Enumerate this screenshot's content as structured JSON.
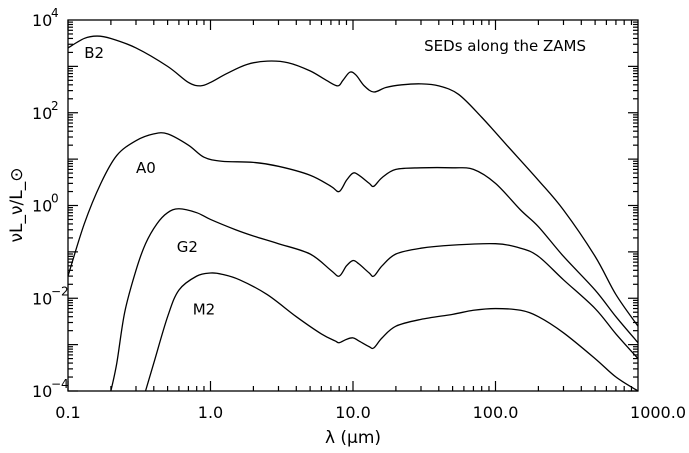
{
  "chart_data": {
    "type": "line",
    "title": "",
    "annotation": "SEDs along the ZAMS",
    "xlabel": "λ (μm)",
    "ylabel": "νL_ν/L_⊙",
    "xscale": "log",
    "yscale": "log",
    "xlim": [
      0.1,
      1000.0
    ],
    "ylim": [
      0.0001,
      10000
    ],
    "grid": false,
    "x_tick_labels": [
      "0.1",
      "1.0",
      "10.0",
      "100.0",
      "1000.0"
    ],
    "x_tick_values": [
      0.1,
      1.0,
      10.0,
      100.0,
      1000.0
    ],
    "y_tick_values": [
      0.0001,
      0.01,
      1,
      100,
      10000
    ],
    "y_tick_labels": [
      {
        "base": "10",
        "exp": "−4"
      },
      {
        "base": "10",
        "exp": "−2"
      },
      {
        "base": "10",
        "exp": "0"
      },
      {
        "base": "10",
        "exp": "2"
      },
      {
        "base": "10",
        "exp": "4"
      }
    ],
    "series": [
      {
        "name": "B2",
        "label_at": [
          0.13,
          1500
        ],
        "points": [
          [
            0.1,
            2500
          ],
          [
            0.13,
            4000
          ],
          [
            0.16,
            4500
          ],
          [
            0.2,
            4000
          ],
          [
            0.3,
            2500
          ],
          [
            0.5,
            1000
          ],
          [
            0.7,
            450
          ],
          [
            0.85,
            380
          ],
          [
            1.0,
            450
          ],
          [
            1.3,
            700
          ],
          [
            1.8,
            1100
          ],
          [
            2.5,
            1300
          ],
          [
            3.5,
            1200
          ],
          [
            5.0,
            800
          ],
          [
            6.5,
            500
          ],
          [
            7.8,
            380
          ],
          [
            8.5,
            500
          ],
          [
            9.5,
            750
          ],
          [
            10.5,
            650
          ],
          [
            12.0,
            380
          ],
          [
            14.0,
            280
          ],
          [
            17.0,
            350
          ],
          [
            22.0,
            400
          ],
          [
            30.0,
            420
          ],
          [
            40.0,
            380
          ],
          [
            55.0,
            250
          ],
          [
            80.0,
            80
          ],
          [
            120.0,
            20
          ],
          [
            200.0,
            3.5
          ],
          [
            300.0,
            0.8
          ],
          [
            500.0,
            0.08
          ],
          [
            700.0,
            0.012
          ],
          [
            1000.0,
            0.0025
          ]
        ]
      },
      {
        "name": "A0",
        "label_at": [
          0.3,
          5
        ],
        "points": [
          [
            0.1,
            0.03
          ],
          [
            0.13,
            0.4
          ],
          [
            0.17,
            3
          ],
          [
            0.22,
            12
          ],
          [
            0.3,
            25
          ],
          [
            0.4,
            35
          ],
          [
            0.5,
            35
          ],
          [
            0.7,
            20
          ],
          [
            0.9,
            11
          ],
          [
            1.2,
            9
          ],
          [
            2.0,
            8.5
          ],
          [
            3.0,
            7
          ],
          [
            5.0,
            4.5
          ],
          [
            7.0,
            2.6
          ],
          [
            8.0,
            2
          ],
          [
            9.0,
            3.5
          ],
          [
            10.0,
            5
          ],
          [
            11.0,
            4.5
          ],
          [
            13.0,
            3
          ],
          [
            14.0,
            2.6
          ],
          [
            16.0,
            4
          ],
          [
            20.0,
            6
          ],
          [
            30.0,
            6.5
          ],
          [
            50.0,
            6.5
          ],
          [
            70.0,
            6
          ],
          [
            100.0,
            3
          ],
          [
            150.0,
            0.8
          ],
          [
            200.0,
            0.35
          ],
          [
            300.0,
            0.08
          ],
          [
            500.0,
            0.015
          ],
          [
            700.0,
            0.004
          ],
          [
            1000.0,
            0.0011
          ]
        ]
      },
      {
        "name": "G2",
        "label_at": [
          0.58,
          0.1
        ],
        "points": [
          [
            0.2,
            0.0001
          ],
          [
            0.22,
            0.0004
          ],
          [
            0.25,
            0.005
          ],
          [
            0.3,
            0.04
          ],
          [
            0.35,
            0.15
          ],
          [
            0.42,
            0.4
          ],
          [
            0.5,
            0.7
          ],
          [
            0.6,
            0.85
          ],
          [
            0.8,
            0.7
          ],
          [
            1.0,
            0.5
          ],
          [
            1.5,
            0.3
          ],
          [
            2.0,
            0.22
          ],
          [
            3.0,
            0.15
          ],
          [
            5.0,
            0.09
          ],
          [
            7.0,
            0.04
          ],
          [
            8.0,
            0.03
          ],
          [
            9.0,
            0.05
          ],
          [
            10.0,
            0.065
          ],
          [
            11.0,
            0.055
          ],
          [
            13.0,
            0.035
          ],
          [
            14.0,
            0.03
          ],
          [
            16.0,
            0.05
          ],
          [
            20.0,
            0.09
          ],
          [
            30.0,
            0.12
          ],
          [
            50.0,
            0.14
          ],
          [
            100.0,
            0.15
          ],
          [
            150.0,
            0.12
          ],
          [
            200.0,
            0.08
          ],
          [
            300.0,
            0.025
          ],
          [
            500.0,
            0.006
          ],
          [
            700.0,
            0.0017
          ],
          [
            1000.0,
            0.0005
          ]
        ]
      },
      {
        "name": "M2",
        "label_at": [
          0.75,
          0.0045
        ],
        "points": [
          [
            0.35,
            0.0001
          ],
          [
            0.4,
            0.0004
          ],
          [
            0.5,
            0.004
          ],
          [
            0.6,
            0.015
          ],
          [
            0.8,
            0.03
          ],
          [
            1.0,
            0.035
          ],
          [
            1.2,
            0.033
          ],
          [
            1.6,
            0.025
          ],
          [
            2.5,
            0.012
          ],
          [
            4.0,
            0.004
          ],
          [
            6.0,
            0.0017
          ],
          [
            7.5,
            0.0012
          ],
          [
            8.0,
            0.0011
          ],
          [
            9.0,
            0.0013
          ],
          [
            10.0,
            0.0014
          ],
          [
            11.0,
            0.0012
          ],
          [
            13.0,
            0.0009
          ],
          [
            14.0,
            0.00085
          ],
          [
            16.0,
            0.0014
          ],
          [
            20.0,
            0.0025
          ],
          [
            30.0,
            0.0035
          ],
          [
            50.0,
            0.0045
          ],
          [
            70.0,
            0.0055
          ],
          [
            100.0,
            0.006
          ],
          [
            150.0,
            0.0055
          ],
          [
            200.0,
            0.004
          ],
          [
            300.0,
            0.0018
          ],
          [
            500.0,
            0.0005
          ],
          [
            700.0,
            0.0002
          ],
          [
            1000.0,
            0.0001
          ]
        ]
      }
    ]
  }
}
